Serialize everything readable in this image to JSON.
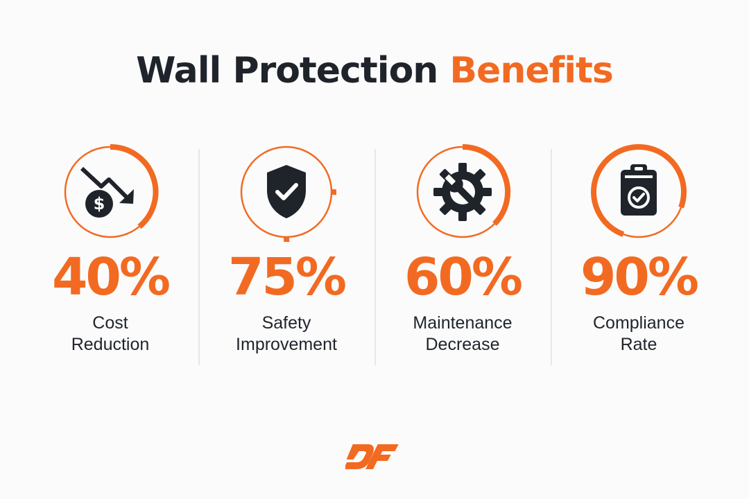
{
  "title": {
    "main": "Wall Protection",
    "accent": "Benefits"
  },
  "stats": [
    {
      "value": "40%",
      "label_line1": "Cost",
      "label_line2": "Reduction",
      "icon": "cost-down-dollar-icon"
    },
    {
      "value": "75%",
      "label_line1": "Safety",
      "label_line2": "Improvement",
      "icon": "shield-check-icon"
    },
    {
      "value": "60%",
      "label_line1": "Maintenance",
      "label_line2": "Decrease",
      "icon": "gear-wrench-icon"
    },
    {
      "value": "90%",
      "label_line1": "Compliance",
      "label_line2": "Rate",
      "icon": "clipboard-check-icon"
    }
  ],
  "logo": {
    "text": "DF",
    "icon": "df-logo-icon"
  },
  "colors": {
    "accent": "#f26a21",
    "dark": "#1f242b",
    "divider": "#e7e7e7",
    "background": "#fbfbfb"
  }
}
